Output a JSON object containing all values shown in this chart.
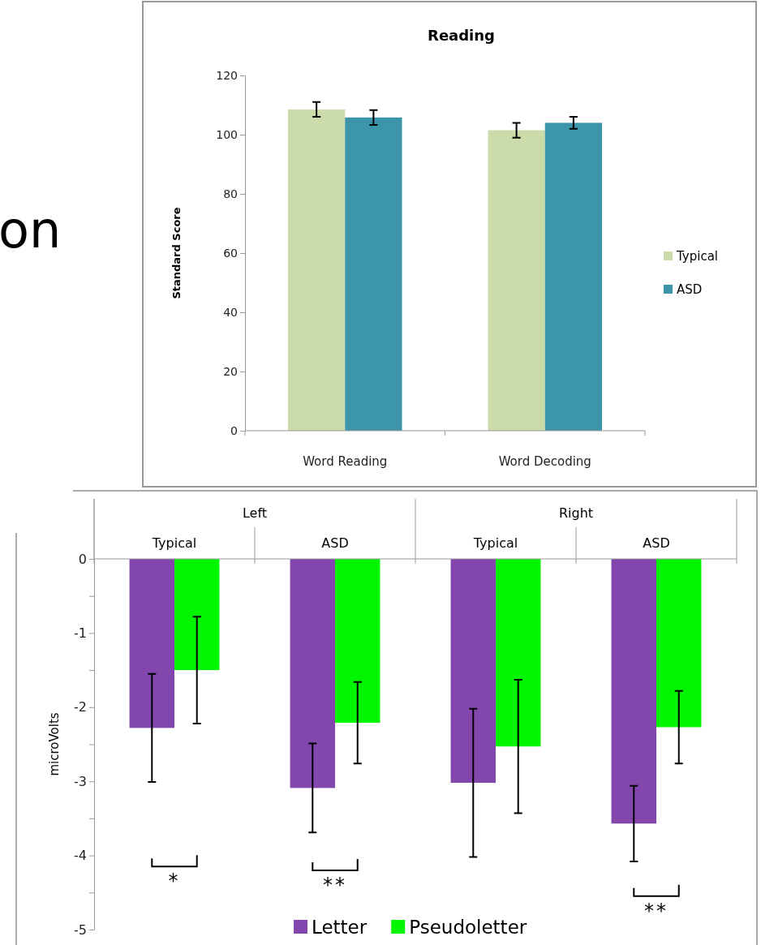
{
  "chart_data": [
    {
      "type": "bar",
      "title": "Reading",
      "ylabel": "Standard Score",
      "categories": [
        "Word Reading",
        "Word Decoding"
      ],
      "series": [
        {
          "name": "Typical",
          "color": "#cbdba9",
          "values": [
            108.5,
            101.5
          ],
          "errors": [
            2.5,
            2.5
          ]
        },
        {
          "name": "ASD",
          "color": "#3d95ab",
          "values": [
            105.8,
            104.0
          ],
          "errors": [
            2.5,
            2.0
          ]
        }
      ],
      "ylim": [
        0,
        120
      ],
      "yticks": [
        0,
        20,
        40,
        60,
        80,
        100,
        120
      ],
      "grid": false,
      "legend": "right",
      "annotations": [
        "on"
      ]
    },
    {
      "type": "bar",
      "ylabel": "microVolts",
      "categories": [
        "Typical",
        "ASD",
        "Typical",
        "ASD"
      ],
      "series": [
        {
          "name": "Letter",
          "color": "#8346ad",
          "values": [
            -2.28,
            -3.09,
            -3.02,
            -3.57
          ],
          "errors": [
            0.73,
            0.6,
            1.0,
            0.51
          ]
        },
        {
          "name": "Pseudoletter",
          "color": "#00f500",
          "values": [
            -1.5,
            -2.21,
            -2.53,
            -2.27
          ],
          "errors": [
            0.72,
            0.55,
            0.9,
            0.49
          ]
        }
      ],
      "ylim": [
        -5,
        0
      ],
      "yticks": [
        {
          "value": -5,
          "label": "-5"
        },
        {
          "value": -4.5,
          "label": null
        },
        {
          "value": -4,
          "label": "-4"
        },
        {
          "value": -3.5,
          "label": null
        },
        {
          "value": -3,
          "label": "-3"
        },
        {
          "value": -2.5,
          "label": null
        },
        {
          "value": -2,
          "label": "-2"
        },
        {
          "value": -1.5,
          "label": null
        },
        {
          "value": -1,
          "label": "-1"
        },
        {
          "value": -0.5,
          "label": null
        },
        {
          "value": 0,
          "label": "0"
        }
      ],
      "grid": false,
      "legend": "bottom",
      "annotations": [
        "Left",
        "Right",
        "*",
        "**",
        "**"
      ]
    }
  ]
}
